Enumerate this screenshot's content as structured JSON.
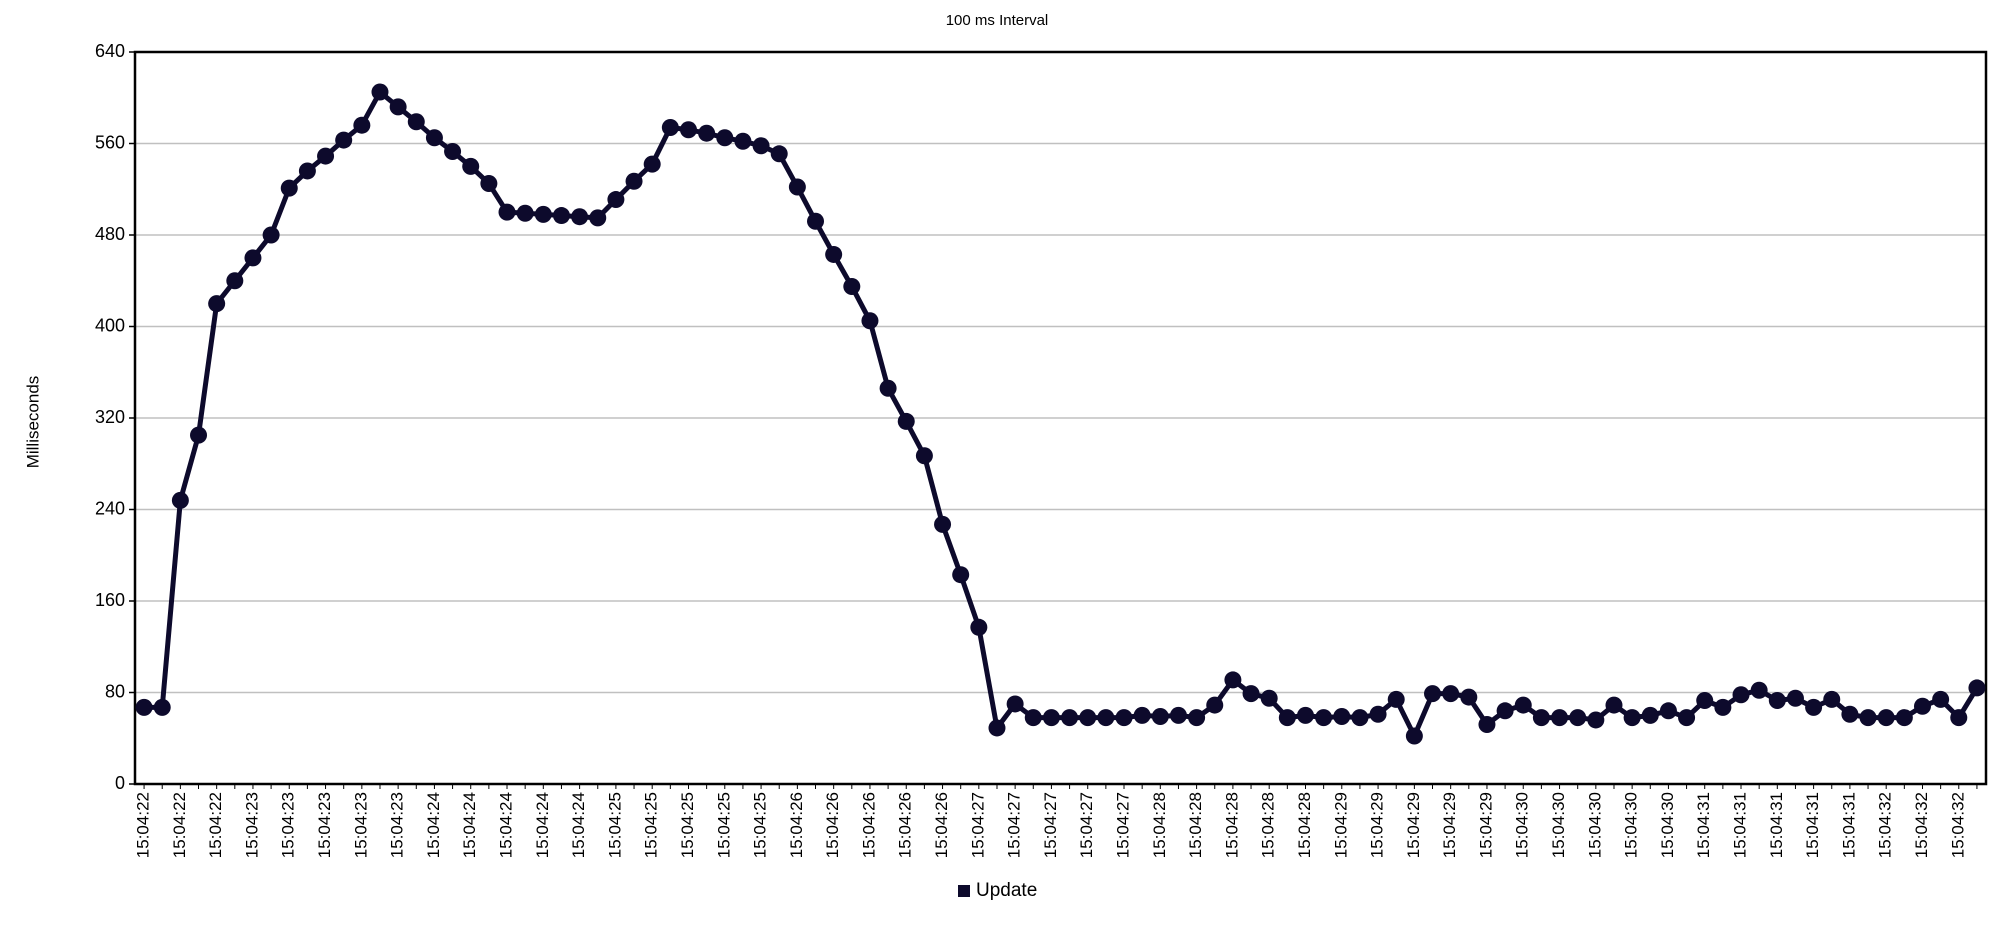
{
  "chart_data": {
    "type": "line",
    "title": "100 ms Interval",
    "y_label": "Milliseconds",
    "categories": [
      "15:04:22",
      null,
      "15:04:22",
      null,
      "15:04:22",
      null,
      "15:04:23",
      null,
      "15:04:23",
      null,
      "15:04:23",
      null,
      "15:04:23",
      null,
      "15:04:23",
      null,
      "15:04:24",
      null,
      "15:04:24",
      null,
      "15:04:24",
      null,
      "15:04:24",
      null,
      "15:04:24",
      null,
      "15:04:25",
      null,
      "15:04:25",
      null,
      "15:04:25",
      null,
      "15:04:25",
      null,
      "15:04:25",
      null,
      "15:04:26",
      null,
      "15:04:26",
      null,
      "15:04:26",
      null,
      "15:04:26",
      null,
      "15:04:26",
      null,
      "15:04:27",
      null,
      "15:04:27",
      null,
      "15:04:27",
      null,
      "15:04:27",
      null,
      "15:04:27",
      null,
      "15:04:28",
      null,
      "15:04:28",
      null,
      "15:04:28",
      null,
      "15:04:28",
      null,
      "15:04:28",
      null,
      "15:04:29",
      null,
      "15:04:29",
      null,
      "15:04:29",
      null,
      "15:04:29",
      null,
      "15:04:29",
      null,
      "15:04:30",
      null,
      "15:04:30",
      null,
      "15:04:30",
      null,
      "15:04:30",
      null,
      "15:04:30",
      null,
      "15:04:31",
      null,
      "15:04:31",
      null,
      "15:04:31",
      null,
      "15:04:31",
      null,
      "15:04:31",
      null,
      "15:04:32",
      null,
      "15:04:32",
      null,
      "15:04:32",
      null
    ],
    "series": [
      {
        "name": "Update",
        "color": "#0d0a2c",
        "values": [
          67,
          67,
          248,
          305,
          420,
          440,
          460,
          480,
          521,
          536,
          549,
          563,
          576,
          605,
          592,
          579,
          565,
          553,
          540,
          525,
          500,
          499,
          498,
          497,
          496,
          495,
          511,
          527,
          542,
          574,
          572,
          569,
          565,
          562,
          558,
          551,
          522,
          492,
          463,
          435,
          405,
          346,
          317,
          287,
          227,
          183,
          137,
          49,
          70,
          58,
          58,
          58,
          58,
          58,
          58,
          60,
          59,
          60,
          58,
          69,
          91,
          79,
          75,
          58,
          60,
          58,
          59,
          58,
          61,
          74,
          42,
          79,
          79,
          76,
          52,
          64,
          69,
          58,
          58,
          58,
          56,
          69,
          58,
          60,
          64,
          58,
          73,
          67,
          78,
          82,
          73,
          75,
          67,
          74,
          61,
          58,
          58,
          58,
          68,
          74,
          58,
          84
        ]
      }
    ],
    "ylim": [
      0,
      640
    ],
    "yticks": [
      0,
      80,
      160,
      240,
      320,
      400,
      480,
      560,
      640
    ],
    "grid": true,
    "legend": "bottom"
  }
}
